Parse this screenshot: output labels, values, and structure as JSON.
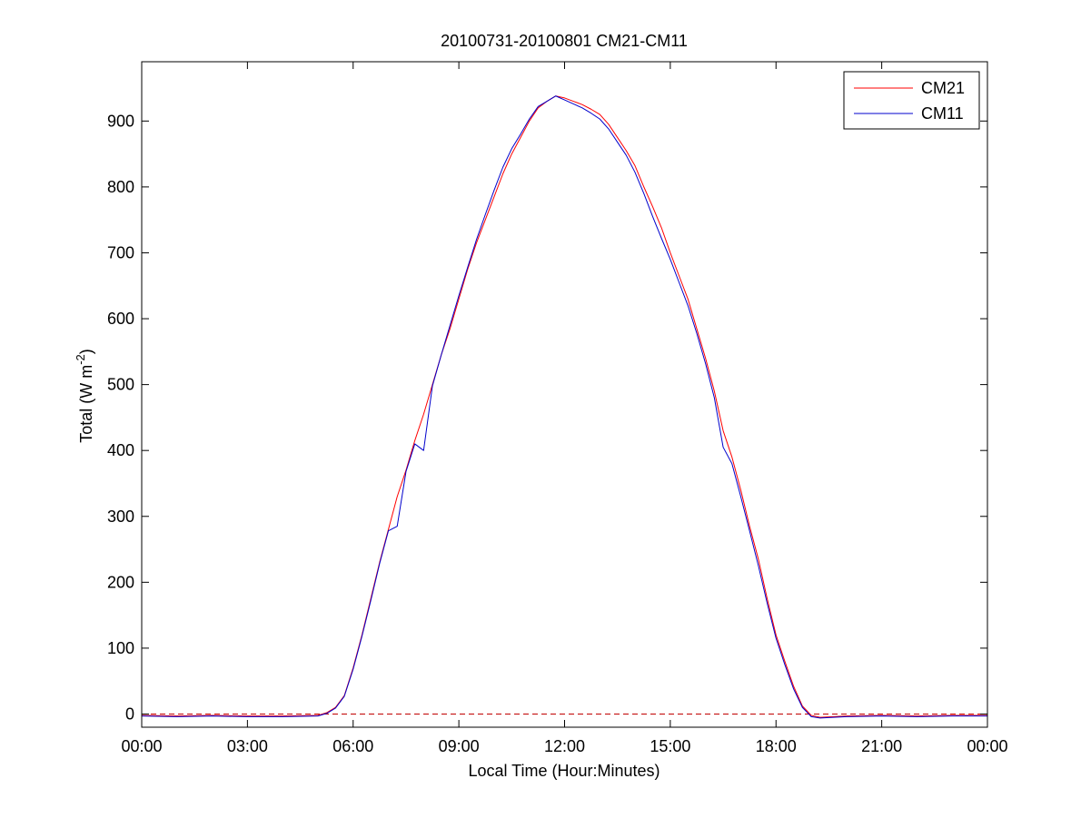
{
  "chart_data": {
    "type": "line",
    "title": "20100731-20100801 CM21-CM11",
    "xlabel": "Local Time (Hour:Minutes)",
    "ylabel_main": "Total (W m",
    "ylabel_sup": "-2",
    "ylabel_tail": ")",
    "x_unit": "hours",
    "xlim": [
      0,
      24
    ],
    "ylim": [
      -20,
      990
    ],
    "x_ticks": [
      0,
      3,
      6,
      9,
      12,
      15,
      18,
      21,
      24
    ],
    "x_tick_labels": [
      "00:00",
      "03:00",
      "06:00",
      "09:00",
      "12:00",
      "15:00",
      "18:00",
      "21:00",
      "00:00"
    ],
    "y_ticks": [
      0,
      100,
      200,
      300,
      400,
      500,
      600,
      700,
      800,
      900
    ],
    "y_tick_labels": [
      "0",
      "100",
      "200",
      "300",
      "400",
      "500",
      "600",
      "700",
      "800",
      "900"
    ],
    "reference_line": {
      "y": 0,
      "style": "dashed",
      "color": "#c00000"
    },
    "legend_position": "top-right",
    "grid": false,
    "series": [
      {
        "name": "CM21",
        "color": "#ff0000",
        "x": [
          0,
          1,
          2,
          3,
          4,
          5,
          5.25,
          5.5,
          5.75,
          6,
          6.25,
          6.5,
          6.75,
          7,
          7.25,
          7.5,
          7.75,
          8,
          8.25,
          8.5,
          8.75,
          9,
          9.25,
          9.5,
          9.75,
          10,
          10.25,
          10.5,
          10.75,
          11,
          11.25,
          11.5,
          11.75,
          12,
          12.25,
          12.5,
          12.75,
          13,
          13.25,
          13.5,
          13.75,
          14,
          14.25,
          14.5,
          14.75,
          15,
          15.25,
          15.5,
          15.75,
          16,
          16.25,
          16.5,
          16.75,
          17,
          17.25,
          17.5,
          17.75,
          18,
          18.25,
          18.5,
          18.75,
          19,
          19.25,
          20,
          21,
          22,
          23,
          24
        ],
        "y": [
          -2,
          -3,
          -2,
          -3,
          -3,
          -2,
          2,
          10,
          28,
          70,
          120,
          175,
          230,
          280,
          330,
          370,
          415,
          455,
          500,
          545,
          585,
          630,
          675,
          715,
          750,
          785,
          820,
          850,
          875,
          900,
          920,
          930,
          938,
          935,
          930,
          925,
          918,
          910,
          895,
          875,
          855,
          832,
          800,
          770,
          738,
          700,
          665,
          630,
          585,
          540,
          490,
          430,
          390,
          340,
          285,
          235,
          175,
          120,
          80,
          42,
          12,
          -2,
          -5,
          -3,
          -2,
          -3,
          -2,
          -2
        ]
      },
      {
        "name": "CM11",
        "color": "#0000cc",
        "x": [
          0,
          1,
          2,
          3,
          4,
          5,
          5.25,
          5.5,
          5.75,
          6,
          6.25,
          6.5,
          6.75,
          7,
          7.25,
          7.5,
          7.75,
          8,
          8.25,
          8.5,
          8.75,
          9,
          9.25,
          9.5,
          9.75,
          10,
          10.25,
          10.5,
          10.75,
          11,
          11.25,
          11.5,
          11.75,
          12,
          12.25,
          12.5,
          12.75,
          13,
          13.25,
          13.5,
          13.75,
          14,
          14.25,
          14.5,
          14.75,
          15,
          15.25,
          15.5,
          15.75,
          16,
          16.25,
          16.5,
          16.75,
          17,
          17.25,
          17.5,
          17.75,
          18,
          18.25,
          18.5,
          18.75,
          19,
          19.25,
          20,
          21,
          22,
          23,
          24
        ],
        "y": [
          -3,
          -4,
          -3,
          -4,
          -4,
          -3,
          1,
          9,
          27,
          68,
          118,
          172,
          228,
          278,
          285,
          368,
          410,
          400,
          498,
          545,
          590,
          635,
          678,
          720,
          758,
          795,
          830,
          858,
          880,
          903,
          922,
          930,
          938,
          932,
          926,
          920,
          912,
          903,
          888,
          868,
          848,
          822,
          790,
          755,
          722,
          690,
          655,
          620,
          578,
          532,
          480,
          405,
          380,
          330,
          278,
          225,
          168,
          115,
          75,
          38,
          10,
          -4,
          -6,
          -4,
          -3,
          -4,
          -3,
          -3
        ]
      }
    ]
  }
}
